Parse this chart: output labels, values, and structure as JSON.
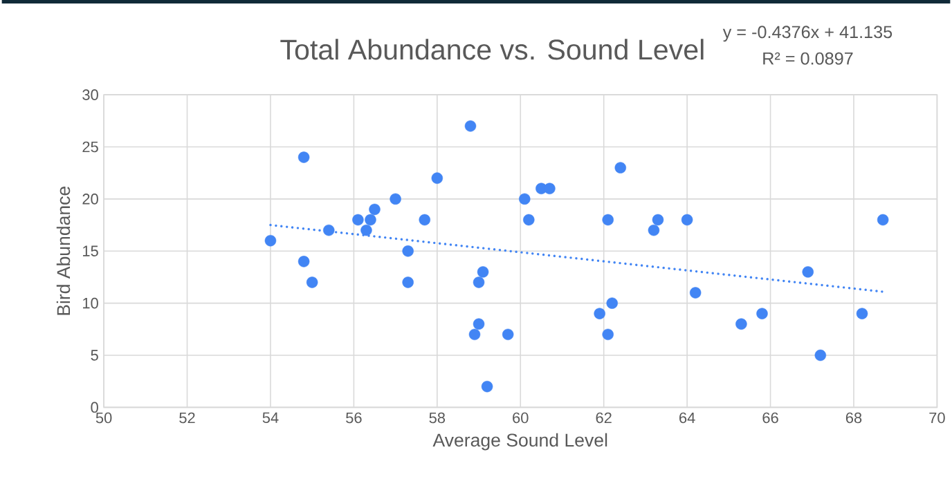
{
  "chart_data": {
    "type": "scatter",
    "title": "Total Abundance vs. Sound Level",
    "xlabel": "Average Sound Level",
    "ylabel": "Bird Abundance",
    "annotations": [
      "y = -0.4376x + 41.135",
      "R² = 0.0897"
    ],
    "series": [
      {
        "color": "#4285f4",
        "marker": "circle",
        "x": [
          54.0,
          54.8,
          54.8,
          55.0,
          55.4,
          56.1,
          56.3,
          56.4,
          56.5,
          57.0,
          57.3,
          57.3,
          57.7,
          58.0,
          58.8,
          58.9,
          59.0,
          59.0,
          59.1,
          59.2,
          59.7,
          60.1,
          60.2,
          60.5,
          60.7,
          61.9,
          62.1,
          62.1,
          62.2,
          62.4,
          63.2,
          63.3,
          64.0,
          64.2,
          65.3,
          65.8,
          66.9,
          67.2,
          68.2,
          68.7
        ],
        "values": [
          16,
          24,
          14,
          12,
          17,
          18,
          17,
          18,
          19,
          20,
          15,
          12,
          18,
          22,
          27,
          7,
          12,
          8,
          13,
          2,
          7,
          20,
          18,
          21,
          21,
          9,
          18,
          7,
          10,
          23,
          17,
          18,
          18,
          11,
          8,
          9,
          13,
          5,
          9,
          18
        ]
      },
      {
        "type": "line",
        "color": "#4285f4",
        "line_style": "dotted",
        "marker": "none",
        "x": [
          54.0,
          68.7
        ],
        "values": [
          17.5,
          11.1
        ]
      }
    ],
    "grid": true,
    "xlim": [
      50,
      70
    ],
    "xticks": [
      50,
      52,
      54,
      56,
      58,
      60,
      62,
      64,
      66,
      68,
      70
    ],
    "ylim": [
      0,
      30
    ],
    "yticks": [
      0,
      5,
      10,
      15,
      20,
      25,
      30
    ]
  }
}
